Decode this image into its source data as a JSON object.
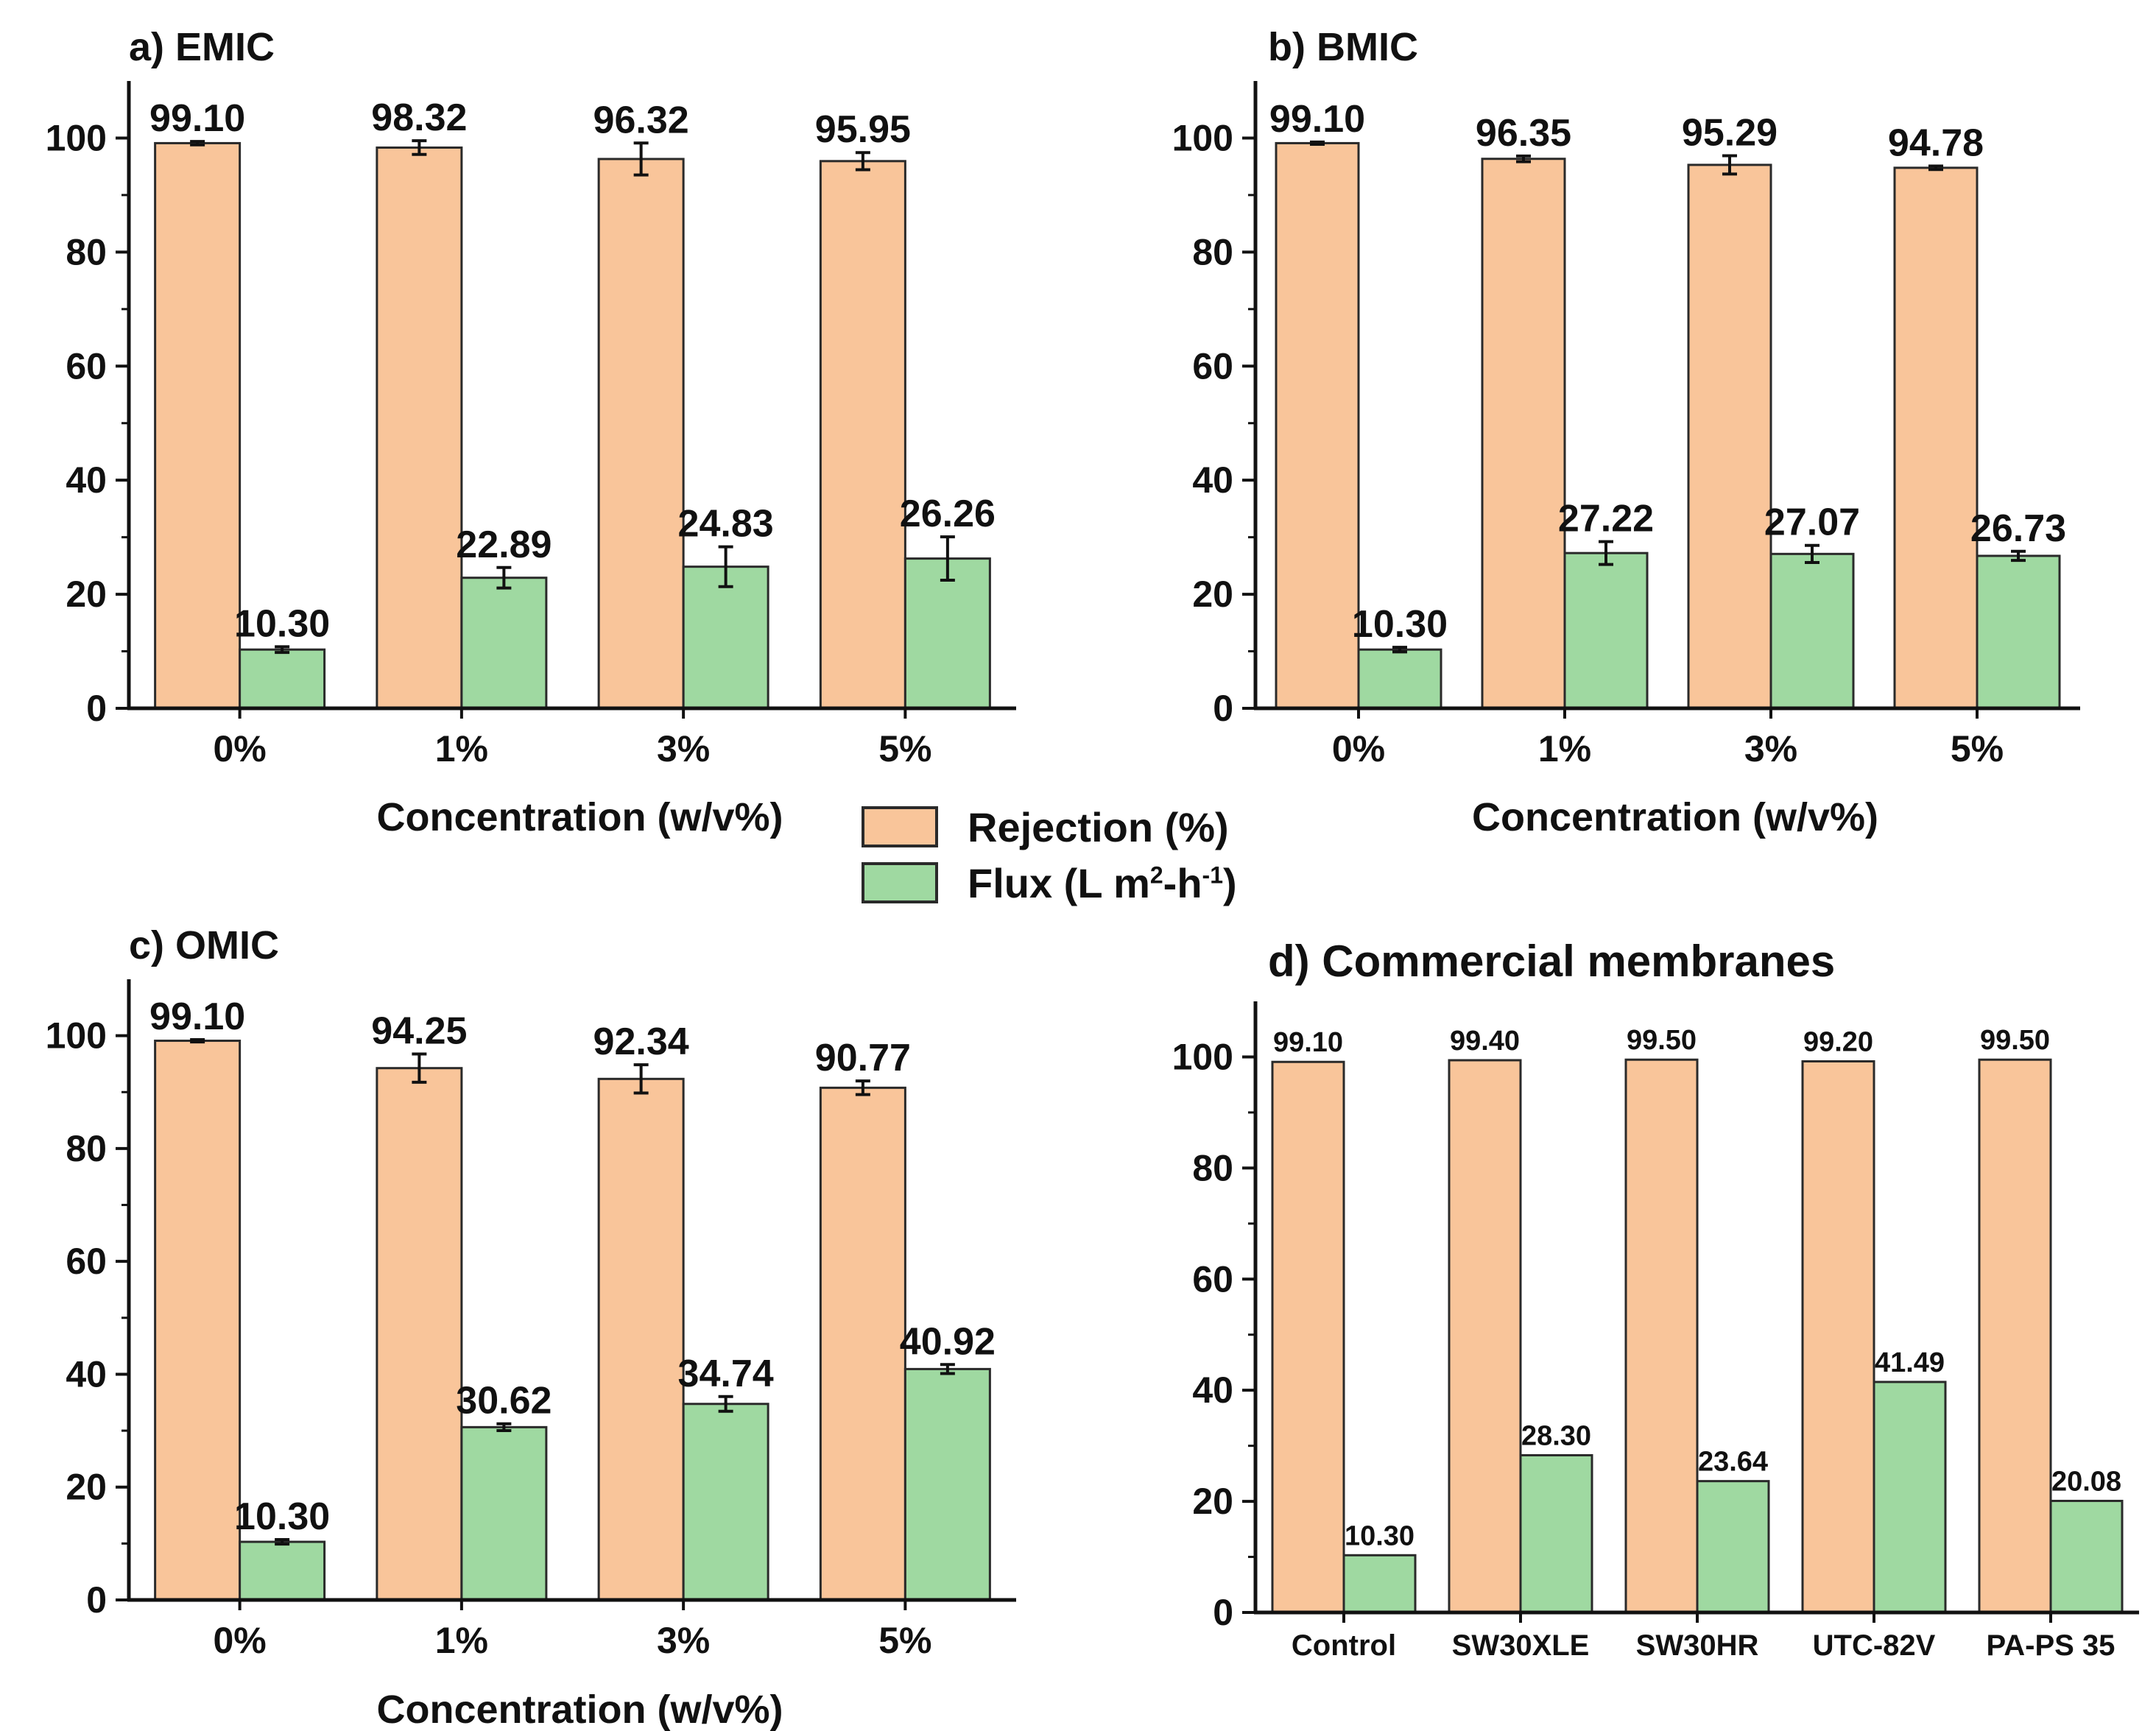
{
  "legend": {
    "rejection_label": "Rejection (%)",
    "flux_label_prefix": "Flux (L m",
    "flux_sup1": "2",
    "flux_mid": "-h",
    "flux_sup2": "-1",
    "flux_suffix": ")"
  },
  "colors": {
    "rejection": "#F9C59A",
    "flux": "#9FD9A1",
    "outline": "#2a2a2a"
  },
  "chart_data": [
    {
      "type": "bar",
      "title": "a) EMIC",
      "xlabel": "Concentration (w/v%)",
      "ylabel": "",
      "categories": [
        "0%",
        "1%",
        "3%",
        "5%"
      ],
      "ylim": [
        0,
        110
      ],
      "yticks": [
        0,
        20,
        40,
        60,
        80,
        100
      ],
      "series": [
        {
          "name": "Rejection (%)",
          "values": [
            99.1,
            98.32,
            96.32,
            95.95
          ],
          "labels": [
            "99.10",
            "98.32",
            "96.32",
            "95.95"
          ],
          "errors": [
            0.3,
            1.2,
            2.8,
            1.5
          ]
        },
        {
          "name": "Flux (L m2-h-1)",
          "values": [
            10.3,
            22.89,
            24.83,
            26.26
          ],
          "labels": [
            "10.30",
            "22.89",
            "24.83",
            "26.26"
          ],
          "errors": [
            0.5,
            1.8,
            3.5,
            3.8
          ]
        }
      ],
      "error_bars": true
    },
    {
      "type": "bar",
      "title": "b) BMIC",
      "xlabel": "Concentration (w/v%)",
      "ylabel": "",
      "categories": [
        "0%",
        "1%",
        "3%",
        "5%"
      ],
      "ylim": [
        0,
        110
      ],
      "yticks": [
        0,
        20,
        40,
        60,
        80,
        100
      ],
      "series": [
        {
          "name": "Rejection (%)",
          "values": [
            99.1,
            96.35,
            95.29,
            94.78
          ],
          "labels": [
            "99.10",
            "96.35",
            "95.29",
            "94.78"
          ],
          "errors": [
            0.2,
            0.5,
            1.6,
            0.3
          ]
        },
        {
          "name": "Flux (L m2-h-1)",
          "values": [
            10.3,
            27.22,
            27.07,
            26.73
          ],
          "labels": [
            "10.30",
            "27.22",
            "27.07",
            "26.73"
          ],
          "errors": [
            0.4,
            2.0,
            1.5,
            0.8
          ]
        }
      ],
      "error_bars": true
    },
    {
      "type": "bar",
      "title": "c) OMIC",
      "xlabel": "Concentration (w/v%)",
      "ylabel": "",
      "categories": [
        "0%",
        "1%",
        "3%",
        "5%"
      ],
      "ylim": [
        0,
        110
      ],
      "yticks": [
        0,
        20,
        40,
        60,
        80,
        100
      ],
      "series": [
        {
          "name": "Rejection (%)",
          "values": [
            99.1,
            94.25,
            92.34,
            90.77
          ],
          "labels": [
            "99.10",
            "94.25",
            "92.34",
            "90.77"
          ],
          "errors": [
            0.2,
            2.5,
            2.5,
            1.2
          ]
        },
        {
          "name": "Flux (L m2-h-1)",
          "values": [
            10.3,
            30.62,
            34.74,
            40.92
          ],
          "labels": [
            "10.30",
            "30.62",
            "34.74",
            "40.92"
          ],
          "errors": [
            0.4,
            0.6,
            1.3,
            0.8
          ]
        }
      ],
      "error_bars": true
    },
    {
      "type": "bar",
      "title": "d) Commercial membranes",
      "xlabel": "",
      "ylabel": "",
      "categories": [
        "Control",
        "SW30XLE",
        "SW30HR",
        "UTC-82V",
        "PA-PS 35"
      ],
      "ylim": [
        0,
        110
      ],
      "yticks": [
        0,
        20,
        40,
        60,
        80,
        100
      ],
      "series": [
        {
          "name": "Rejection (%)",
          "values": [
            99.1,
            99.4,
            99.5,
            99.2,
            99.5
          ],
          "labels": [
            "99.10",
            "99.40",
            "99.50",
            "99.20",
            "99.50"
          ]
        },
        {
          "name": "Flux (L m2-h-1)",
          "values": [
            10.3,
            28.3,
            23.64,
            41.49,
            20.08
          ],
          "labels": [
            "10.30",
            "28.30",
            "23.64",
            "41.49",
            "20.08"
          ]
        }
      ],
      "error_bars": false
    }
  ]
}
